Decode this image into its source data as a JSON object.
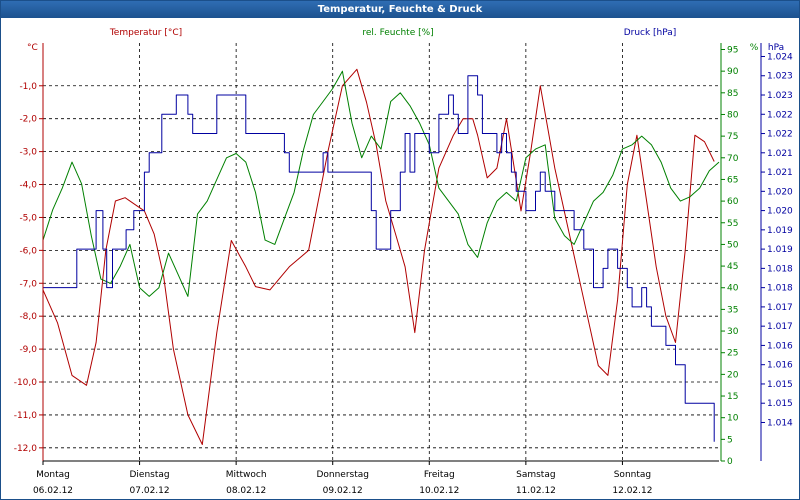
{
  "window": {
    "title": "Temperatur, Feuchte & Druck"
  },
  "chart_data": {
    "type": "line",
    "title": "Temperatur, Feuchte & Druck",
    "colors": {
      "temperature": "#b00000",
      "humidity": "#008000",
      "pressure": "#0000a0",
      "grid": "#000000",
      "frame": "#1b4f8a"
    },
    "x_axis": {
      "days": [
        {
          "name": "Montag",
          "date": "06.02.12"
        },
        {
          "name": "Dienstag",
          "date": "07.02.12"
        },
        {
          "name": "Mittwoch",
          "date": "08.02.12"
        },
        {
          "name": "Donnerstag",
          "date": "09.02.12"
        },
        {
          "name": "Freitag",
          "date": "10.02.12"
        },
        {
          "name": "Samstag",
          "date": "11.02.12"
        },
        {
          "name": "Sonntag",
          "date": "12.02.12"
        }
      ],
      "range_days": [
        0,
        7
      ]
    },
    "y_axes": {
      "temperature": {
        "label": "Temperatur [°C]",
        "unit": "°C",
        "range": [
          -12.4,
          0.3
        ],
        "ticks": [
          "-1,0",
          "-2,0",
          "-3,0",
          "-4,0",
          "-5,0",
          "-6,0",
          "-7,0",
          "-8,0",
          "-9,0",
          "-10,0",
          "-11,0",
          "-12,0"
        ],
        "tick_values": [
          -1,
          -2,
          -3,
          -4,
          -5,
          -6,
          -7,
          -8,
          -9,
          -10,
          -11,
          -12
        ]
      },
      "humidity": {
        "label": "rel. Feuchte [%]",
        "unit": "%",
        "range": [
          0,
          96.5
        ],
        "ticks": [
          "95",
          "90",
          "85",
          "80",
          "75",
          "70",
          "65",
          "60",
          "55",
          "50",
          "45",
          "40",
          "35",
          "30",
          "25",
          "20",
          "15",
          "10",
          "5",
          "0"
        ],
        "tick_values": [
          95,
          90,
          85,
          80,
          75,
          70,
          65,
          60,
          55,
          50,
          45,
          40,
          35,
          30,
          25,
          20,
          15,
          10,
          5,
          0
        ]
      },
      "pressure": {
        "label": "Druck [hPa]",
        "unit": "hPa",
        "range": [
          1013.5,
          1024.35
        ],
        "ticks": [
          "1.024",
          "1.023",
          "1.023",
          "1.022",
          "1.022",
          "1.021",
          "1.021",
          "1.020",
          "1.020",
          "1.019",
          "1.019",
          "1.018",
          "1.018",
          "1.017",
          "1.017",
          "1.016",
          "1.016",
          "1.015",
          "1.015",
          "1.014"
        ],
        "tick_values": [
          1024.0,
          1023.5,
          1023.0,
          1022.5,
          1022.0,
          1021.5,
          1021.0,
          1020.5,
          1020.0,
          1019.5,
          1019.0,
          1018.5,
          1018.0,
          1017.5,
          1017.0,
          1016.5,
          1016.0,
          1015.5,
          1015.0,
          1014.5
        ]
      }
    },
    "series": [
      {
        "name": "Temperatur [°C]",
        "axis": "temperature",
        "x": [
          0,
          0.15,
          0.3,
          0.45,
          0.55,
          0.65,
          0.75,
          0.85,
          0.95,
          1.05,
          1.15,
          1.25,
          1.35,
          1.5,
          1.65,
          1.8,
          1.95,
          2.1,
          2.2,
          2.35,
          2.55,
          2.75,
          2.95,
          3.1,
          3.25,
          3.35,
          3.45,
          3.55,
          3.65,
          3.75,
          3.85,
          3.95,
          4.1,
          4.25,
          4.35,
          4.45,
          4.5,
          4.6,
          4.7,
          4.8,
          4.95,
          5.05,
          5.15,
          5.3,
          5.45,
          5.6,
          5.75,
          5.85,
          5.95,
          6.05,
          6.15,
          6.25,
          6.35,
          6.45,
          6.55,
          6.65,
          6.75,
          6.85,
          6.95
        ],
        "values": [
          -7.2,
          -8.2,
          -9.8,
          -10.1,
          -8.8,
          -6.0,
          -4.5,
          -4.4,
          -4.6,
          -4.8,
          -5.5,
          -6.8,
          -9.0,
          -11.0,
          -11.9,
          -8.5,
          -5.7,
          -6.5,
          -7.1,
          -7.2,
          -6.5,
          -6.0,
          -3.0,
          -1.0,
          -0.5,
          -1.5,
          -2.8,
          -4.5,
          -5.5,
          -6.5,
          -8.5,
          -6.0,
          -3.5,
          -2.5,
          -2.0,
          -2.0,
          -2.5,
          -3.8,
          -3.5,
          -2.0,
          -4.8,
          -3.0,
          -1.0,
          -3.5,
          -5.5,
          -7.5,
          -9.5,
          -9.8,
          -7.5,
          -4.0,
          -2.5,
          -4.5,
          -6.5,
          -8.0,
          -8.8,
          -6.0,
          -2.5,
          -2.7,
          -3.3
        ]
      },
      {
        "name": "rel. Feuchte [%]",
        "axis": "humidity",
        "x": [
          0,
          0.1,
          0.2,
          0.3,
          0.4,
          0.5,
          0.6,
          0.7,
          0.8,
          0.9,
          1.0,
          1.1,
          1.2,
          1.3,
          1.4,
          1.5,
          1.6,
          1.7,
          1.8,
          1.9,
          2.0,
          2.1,
          2.2,
          2.3,
          2.4,
          2.5,
          2.6,
          2.7,
          2.8,
          2.9,
          3.0,
          3.1,
          3.2,
          3.3,
          3.4,
          3.5,
          3.6,
          3.7,
          3.8,
          3.9,
          4.0,
          4.1,
          4.2,
          4.3,
          4.4,
          4.5,
          4.6,
          4.7,
          4.8,
          4.9,
          5.0,
          5.1,
          5.2,
          5.3,
          5.4,
          5.5,
          5.6,
          5.7,
          5.8,
          5.9,
          6.0,
          6.1,
          6.2,
          6.3,
          6.4,
          6.5,
          6.6,
          6.7,
          6.8,
          6.9,
          7.0
        ],
        "values": [
          51,
          58,
          63,
          69,
          64,
          52,
          42,
          41,
          45,
          50,
          40,
          38,
          40,
          48,
          43,
          38,
          57,
          60,
          65,
          70,
          71,
          69,
          62,
          51,
          50,
          56,
          62,
          72,
          80,
          83,
          86,
          90,
          78,
          70,
          75,
          72,
          83,
          85,
          82,
          78,
          73,
          63,
          60,
          57,
          50,
          47,
          55,
          60,
          62,
          60,
          70,
          72,
          73,
          56,
          52,
          50,
          55,
          60,
          62,
          66,
          72,
          73,
          75,
          73,
          69,
          63,
          60,
          61,
          63,
          67,
          69
        ]
      },
      {
        "name": "Druck [hPa]",
        "axis": "pressure",
        "x": [
          0,
          0.3,
          0.35,
          0.5,
          0.55,
          0.62,
          0.66,
          0.72,
          0.8,
          0.86,
          0.94,
          1.0,
          1.05,
          1.1,
          1.18,
          1.23,
          1.3,
          1.38,
          1.45,
          1.5,
          1.55,
          1.7,
          1.8,
          1.9,
          2.0,
          2.1,
          2.2,
          2.4,
          2.5,
          2.55,
          2.6,
          2.8,
          2.9,
          2.95,
          3.1,
          3.2,
          3.3,
          3.4,
          3.45,
          3.55,
          3.6,
          3.7,
          3.75,
          3.8,
          3.85,
          3.9,
          4.0,
          4.1,
          4.2,
          4.25,
          4.3,
          4.4,
          4.5,
          4.55,
          4.6,
          4.7,
          4.75,
          4.8,
          4.85,
          4.9,
          5.0,
          5.1,
          5.15,
          5.2,
          5.3,
          5.35,
          5.45,
          5.5,
          5.6,
          5.7,
          5.75,
          5.8,
          5.85,
          5.9,
          5.95,
          6.05,
          6.1,
          6.2,
          6.25,
          6.3,
          6.4,
          6.45,
          6.55,
          6.65,
          6.75,
          6.85,
          6.95
        ],
        "values": [
          1018,
          1018,
          1019,
          1019,
          1020,
          1019,
          1018,
          1019,
          1019,
          1019.5,
          1020,
          1020,
          1021,
          1021.5,
          1021.5,
          1022.5,
          1022.5,
          1023,
          1023,
          1022.5,
          1022,
          1022,
          1023,
          1023,
          1023,
          1022,
          1022,
          1022,
          1021.5,
          1021,
          1021,
          1021,
          1021.5,
          1021,
          1021,
          1021,
          1021,
          1020,
          1019,
          1019,
          1020,
          1021,
          1022,
          1021,
          1022,
          1022,
          1021.5,
          1022.5,
          1023,
          1022.5,
          1022,
          1023.5,
          1023,
          1022,
          1022,
          1021.5,
          1022,
          1021.5,
          1021,
          1020.5,
          1020,
          1020.5,
          1021,
          1020.5,
          1020,
          1020,
          1020,
          1019.5,
          1019,
          1018,
          1018,
          1018.5,
          1019,
          1019,
          1018.5,
          1018,
          1017.5,
          1018,
          1017.5,
          1017,
          1017,
          1016.5,
          1016,
          1015,
          1015,
          1015,
          1014
        ]
      }
    ]
  }
}
